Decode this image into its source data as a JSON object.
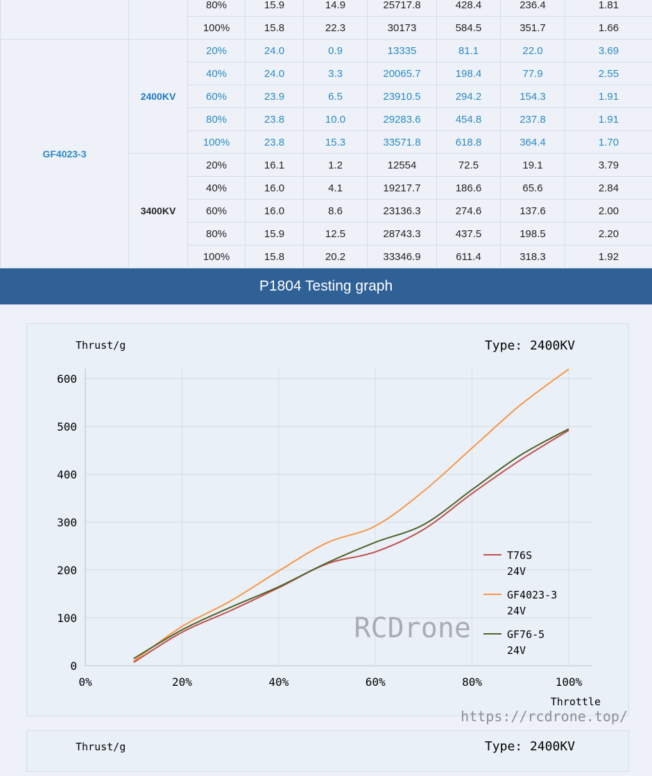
{
  "table": {
    "groups": [
      {
        "model": "",
        "kv": "",
        "rows": [
          [
            "80%",
            "15.9",
            "14.9",
            "25717.8",
            "428.4",
            "236.4",
            "1.81"
          ],
          [
            "100%",
            "15.8",
            "22.3",
            "30173",
            "584.5",
            "351.7",
            "1.66"
          ]
        ]
      },
      {
        "model": "GF4023-3",
        "kv": "2400KV",
        "highlight": true,
        "rows": [
          [
            "20%",
            "24.0",
            "0.9",
            "13335",
            "81.1",
            "22.0",
            "3.69"
          ],
          [
            "40%",
            "24.0",
            "3.3",
            "20065.7",
            "198.4",
            "77.9",
            "2.55"
          ],
          [
            "60%",
            "23.9",
            "6.5",
            "23910.5",
            "294.2",
            "154.3",
            "1.91"
          ],
          [
            "80%",
            "23.8",
            "10.0",
            "29283.6",
            "454.8",
            "237.8",
            "1.91"
          ],
          [
            "100%",
            "23.8",
            "15.3",
            "33571.8",
            "618.8",
            "364.4",
            "1.70"
          ]
        ]
      },
      {
        "model": "GF4023-3",
        "kv": "3400KV",
        "rows": [
          [
            "20%",
            "16.1",
            "1.2",
            "12554",
            "72.5",
            "19.1",
            "3.79"
          ],
          [
            "40%",
            "16.0",
            "4.1",
            "19217.7",
            "186.6",
            "65.6",
            "2.84"
          ],
          [
            "60%",
            "16.0",
            "8.6",
            "23136.3",
            "274.6",
            "137.6",
            "2.00"
          ],
          [
            "80%",
            "15.9",
            "12.5",
            "28743.3",
            "437.5",
            "198.5",
            "2.20"
          ],
          [
            "100%",
            "15.8",
            "20.2",
            "33346.9",
            "611.4",
            "318.3",
            "1.92"
          ]
        ]
      }
    ]
  },
  "banner": "P1804 Testing graph",
  "watermark": "RCDrone",
  "url_watermark": "https://rcdrone.top/",
  "chart_data": {
    "type": "line",
    "ylabel": "Thrust/g",
    "xlabel": "Throttle",
    "annotation": "Type: 2400KV",
    "x": [
      10,
      20,
      30,
      40,
      50,
      60,
      70,
      80,
      90,
      100
    ],
    "xticks": [
      "0%",
      "20%",
      "40%",
      "60%",
      "80%",
      "100%"
    ],
    "xlim": [
      0,
      100
    ],
    "yticks": [
      "0",
      "100",
      "200",
      "300",
      "400",
      "500",
      "600"
    ],
    "ylim": [
      0,
      600
    ],
    "grid": true,
    "legend": "right",
    "series": [
      {
        "name": "T76S 24V",
        "color": "#c0504d",
        "values": [
          7,
          70,
          115,
          163,
          213,
          238,
          285,
          360,
          430,
          492
        ]
      },
      {
        "name": "GF4023-3 24V",
        "color": "#f79646",
        "values": [
          10,
          82,
          135,
          198,
          257,
          292,
          365,
          455,
          545,
          620
        ]
      },
      {
        "name": "GF76-5 24V",
        "color": "#4f6228",
        "values": [
          15,
          75,
          122,
          165,
          215,
          258,
          295,
          368,
          440,
          495
        ]
      }
    ]
  },
  "next_panel": {
    "ylabel": "Thrust/g",
    "annotation": "Type: 2400KV"
  }
}
